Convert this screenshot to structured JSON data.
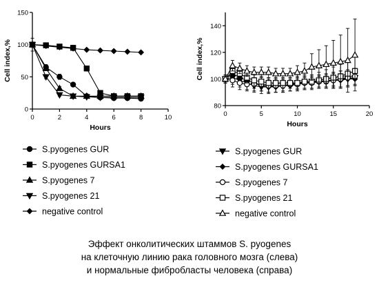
{
  "chart_data": [
    {
      "type": "line",
      "title": "",
      "xlabel": "Hours",
      "ylabel": "Cell index,%",
      "xlim": [
        0,
        10
      ],
      "ylim": [
        0,
        150
      ],
      "xticks": [
        0,
        2,
        4,
        6,
        8,
        10
      ],
      "yticks": [
        0,
        50,
        100,
        150
      ],
      "grid": false,
      "legend": "below",
      "series": [
        {
          "name": "S.pyogenes GUR",
          "marker": "circle-filled",
          "x": [
            0,
            1,
            2,
            3,
            4,
            5,
            6,
            7,
            8
          ],
          "y": [
            100,
            65,
            50,
            38,
            20,
            18,
            17,
            17,
            16
          ],
          "err": [
            10,
            4,
            4,
            3,
            2,
            2,
            2,
            2,
            2
          ]
        },
        {
          "name": "S.pyogenes GURSA1",
          "marker": "square-filled",
          "x": [
            0,
            1,
            2,
            3,
            4,
            5,
            6,
            7,
            8
          ],
          "y": [
            100,
            99,
            97,
            95,
            63,
            25,
            20,
            20,
            20
          ],
          "err": [
            4,
            3,
            3,
            4,
            4,
            3,
            2,
            2,
            2
          ]
        },
        {
          "name": "S.pyogenes 7",
          "marker": "triangle-up-filled",
          "x": [
            0,
            1,
            2,
            3,
            4,
            5,
            6,
            7,
            8
          ],
          "y": [
            100,
            63,
            32,
            20,
            20,
            20,
            20,
            20,
            20
          ],
          "err": [
            3,
            3,
            3,
            2,
            2,
            2,
            2,
            2,
            2
          ]
        },
        {
          "name": "S.pyogenes 21",
          "marker": "triangle-down-filled",
          "x": [
            0,
            1,
            2,
            3,
            4,
            5,
            6,
            7,
            8
          ],
          "y": [
            100,
            50,
            22,
            20,
            19,
            18,
            18,
            18,
            18
          ],
          "err": [
            3,
            3,
            2,
            2,
            2,
            2,
            2,
            2,
            2
          ]
        },
        {
          "name": "negative control",
          "marker": "diamond-filled",
          "x": [
            0,
            1,
            2,
            3,
            4,
            5,
            6,
            7,
            8
          ],
          "y": [
            100,
            98,
            96,
            94,
            92,
            91,
            90,
            89,
            88
          ],
          "err": [
            2,
            2,
            2,
            2,
            2,
            2,
            2,
            2,
            2
          ]
        }
      ]
    },
    {
      "type": "line",
      "title": "",
      "xlabel": "Hours",
      "ylabel": "Cell index,%",
      "xlim": [
        0,
        20
      ],
      "ylim": [
        80,
        150
      ],
      "xticks": [
        0,
        5,
        10,
        15,
        20
      ],
      "yticks": [
        80,
        100,
        120,
        140
      ],
      "grid": false,
      "legend": "below",
      "series": [
        {
          "name": "S.pyogenes GUR",
          "marker": "triangle-down-filled",
          "x": [
            0,
            1,
            2,
            3,
            4,
            5,
            6,
            7,
            8,
            9,
            10,
            11,
            12,
            13,
            14,
            15,
            16,
            17,
            18
          ],
          "y": [
            100,
            101,
            99,
            97,
            95,
            94,
            94,
            95,
            95,
            96,
            97,
            97,
            98,
            98,
            99,
            99,
            100,
            100,
            101
          ],
          "err": [
            3,
            5,
            5,
            5,
            5,
            5,
            5,
            5,
            5,
            5,
            5,
            5,
            5,
            5,
            5,
            6,
            6,
            6,
            6
          ]
        },
        {
          "name": "S.pyogenes GURSA1",
          "marker": "diamond-filled",
          "x": [
            0,
            1,
            2,
            3,
            4,
            5,
            6,
            7,
            8,
            9,
            10,
            11,
            12,
            13,
            14,
            15,
            16,
            17,
            18
          ],
          "y": [
            100,
            104,
            101,
            99,
            97,
            95,
            94,
            94,
            95,
            95,
            96,
            97,
            97,
            98,
            98,
            99,
            99,
            100,
            100
          ],
          "err": [
            3,
            4,
            4,
            4,
            4,
            4,
            4,
            4,
            4,
            4,
            4,
            4,
            4,
            4,
            4,
            5,
            5,
            5,
            5
          ]
        },
        {
          "name": "S.pyogenes 7",
          "marker": "circle-open",
          "x": [
            0,
            1,
            2,
            3,
            4,
            5,
            6,
            7,
            8,
            9,
            10,
            11,
            12,
            13,
            14,
            15,
            16,
            17,
            18
          ],
          "y": [
            100,
            99,
            97,
            96,
            96,
            96,
            95,
            95,
            95,
            96,
            96,
            97,
            97,
            98,
            98,
            99,
            100,
            101,
            102
          ],
          "err": [
            3,
            5,
            5,
            5,
            5,
            5,
            5,
            5,
            5,
            5,
            5,
            5,
            5,
            5,
            5,
            6,
            6,
            6,
            6
          ]
        },
        {
          "name": "S.pyogenes 21",
          "marker": "square-open",
          "x": [
            0,
            1,
            2,
            3,
            4,
            5,
            6,
            7,
            8,
            9,
            10,
            11,
            12,
            13,
            14,
            15,
            16,
            17,
            18
          ],
          "y": [
            100,
            106,
            104,
            101,
            99,
            98,
            97,
            97,
            97,
            97,
            97,
            98,
            98,
            99,
            100,
            101,
            102,
            104,
            106
          ],
          "err": [
            3,
            4,
            4,
            4,
            4,
            4,
            4,
            4,
            4,
            4,
            4,
            5,
            5,
            6,
            7,
            8,
            9,
            10,
            11
          ]
        },
        {
          "name": "negative control",
          "marker": "triangle-up-open",
          "x": [
            0,
            1,
            2,
            3,
            4,
            5,
            6,
            7,
            8,
            9,
            10,
            11,
            12,
            13,
            14,
            15,
            16,
            17,
            18
          ],
          "y": [
            100,
            110,
            108,
            106,
            105,
            105,
            105,
            104,
            104,
            104,
            105,
            106,
            109,
            110,
            111,
            112,
            113,
            114,
            118
          ],
          "err": [
            3,
            4,
            4,
            4,
            4,
            4,
            4,
            4,
            4,
            4,
            5,
            6,
            10,
            12,
            14,
            17,
            20,
            24,
            27
          ]
        }
      ]
    }
  ],
  "caption": {
    "line1": "Эффект онколитических штаммов S. pyogenes",
    "line2": "на клеточную линию рака головного мозга (слева)",
    "line3": "и нормальные фибробласты человека (справа)"
  }
}
